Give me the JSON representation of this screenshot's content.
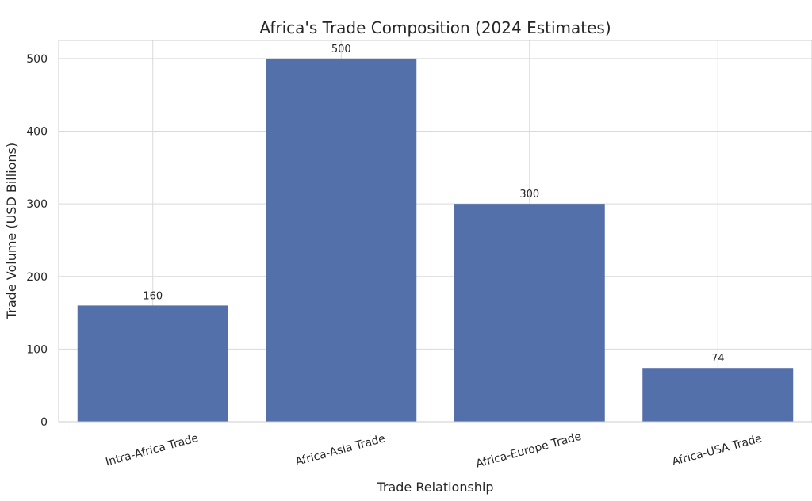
{
  "colors": {
    "bar": "#5470aa",
    "grid": "#d9d9d9",
    "text": "#262626",
    "background": "#ffffff"
  },
  "chart_data": {
    "type": "bar",
    "title": "Africa's Trade Composition (2024 Estimates)",
    "xlabel": "Trade Relationship",
    "ylabel": "Trade Volume (USD Billions)",
    "categories": [
      "Intra-Africa Trade",
      "Africa-Asia Trade",
      "Africa-Europe Trade",
      "Africa-USA Trade"
    ],
    "values": [
      160,
      500,
      300,
      74
    ],
    "value_labels": [
      "160",
      "500",
      "300",
      "74"
    ],
    "ylim": [
      0,
      525
    ],
    "yticks": [
      0,
      100,
      200,
      300,
      400,
      500
    ],
    "grid": true,
    "legend": "none"
  }
}
